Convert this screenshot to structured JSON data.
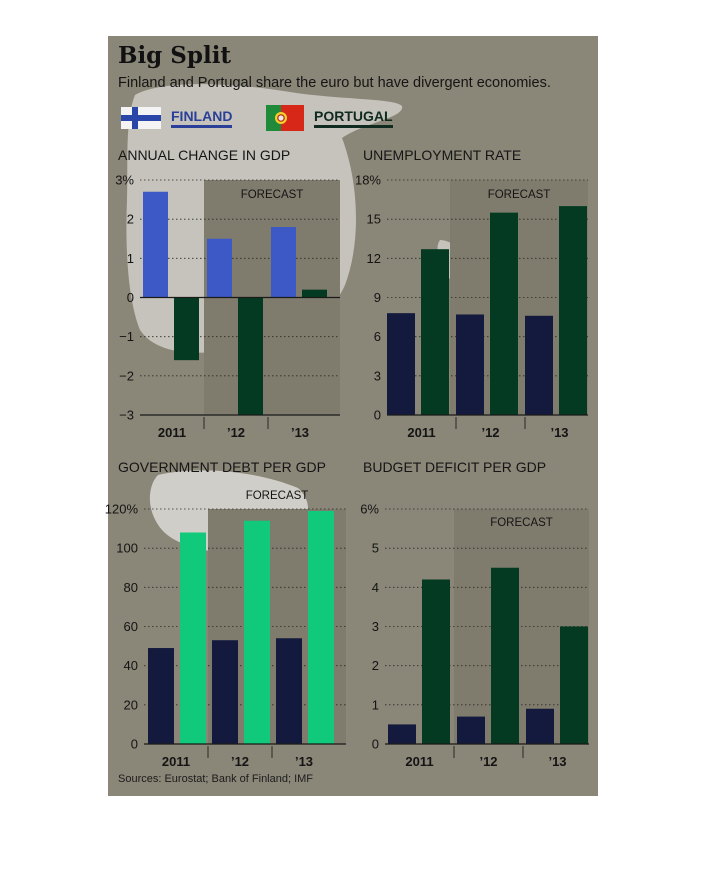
{
  "header": {
    "title": "Big Split",
    "subtitle": "Finland and Portugal share the euro but have divergent economies."
  },
  "legend": [
    {
      "label": "FINLAND",
      "color": "#2a3f97"
    },
    {
      "label": "PORTUGAL",
      "color": "#0f2a1e"
    }
  ],
  "sources": "Sources: Eurostat; Bank of Finland; IMF",
  "colors": {
    "panel": "#8a8678",
    "finland_bar": "#141a3d",
    "portugal_bar": "#033a21",
    "finland_bar_highlight": "#3c59c6",
    "portugal_bar_highlight": "#11c97a",
    "forecast_shade": "#7f7b6d"
  },
  "chart_data": [
    {
      "type": "bar",
      "title": "ANNUAL CHANGE IN GDP",
      "categories": [
        "2011",
        "’12",
        "’13"
      ],
      "forecast_label": "FORECAST",
      "ylim": [
        -3,
        3
      ],
      "yticks": [
        -3,
        -2,
        -1,
        0,
        1,
        2,
        3
      ],
      "ytick_labels": [
        "−3",
        "−2",
        "−1",
        "0",
        "1",
        "2",
        "3%"
      ],
      "series": [
        {
          "name": "FINLAND",
          "values": [
            2.7,
            1.5,
            1.8
          ]
        },
        {
          "name": "PORTUGAL",
          "values": [
            -1.6,
            -3.0,
            0.2
          ]
        }
      ]
    },
    {
      "type": "bar",
      "title": "UNEMPLOYMENT RATE",
      "categories": [
        "2011",
        "’12",
        "’13"
      ],
      "forecast_label": "FORECAST",
      "ylim": [
        0,
        18
      ],
      "yticks": [
        0,
        3,
        6,
        9,
        12,
        15,
        18
      ],
      "ytick_labels": [
        "0",
        "3",
        "6",
        "9",
        "12",
        "15",
        "18%"
      ],
      "series": [
        {
          "name": "FINLAND",
          "values": [
            7.8,
            7.7,
            7.6
          ]
        },
        {
          "name": "PORTUGAL",
          "values": [
            12.7,
            15.5,
            16.0
          ]
        }
      ]
    },
    {
      "type": "bar",
      "title": "GOVERNMENT DEBT PER GDP",
      "categories": [
        "2011",
        "’12",
        "’13"
      ],
      "forecast_label": "FORECAST",
      "ylim": [
        0,
        120
      ],
      "yticks": [
        0,
        20,
        40,
        60,
        80,
        100,
        120
      ],
      "ytick_labels": [
        "0",
        "20",
        "40",
        "60",
        "80",
        "100",
        "120%"
      ],
      "series": [
        {
          "name": "FINLAND",
          "values": [
            49,
            53,
            54
          ]
        },
        {
          "name": "PORTUGAL",
          "values": [
            108,
            114,
            119
          ]
        }
      ]
    },
    {
      "type": "bar",
      "title": "BUDGET DEFICIT PER GDP",
      "categories": [
        "2011",
        "’12",
        "’13"
      ],
      "forecast_label": "FORECAST",
      "ylim": [
        0,
        6
      ],
      "yticks": [
        0,
        1,
        2,
        3,
        4,
        5,
        6
      ],
      "ytick_labels": [
        "0",
        "1",
        "2",
        "3",
        "4",
        "5",
        "6%"
      ],
      "series": [
        {
          "name": "FINLAND",
          "values": [
            0.5,
            0.7,
            0.9
          ]
        },
        {
          "name": "PORTUGAL",
          "values": [
            4.2,
            4.5,
            3.0
          ]
        }
      ]
    }
  ]
}
